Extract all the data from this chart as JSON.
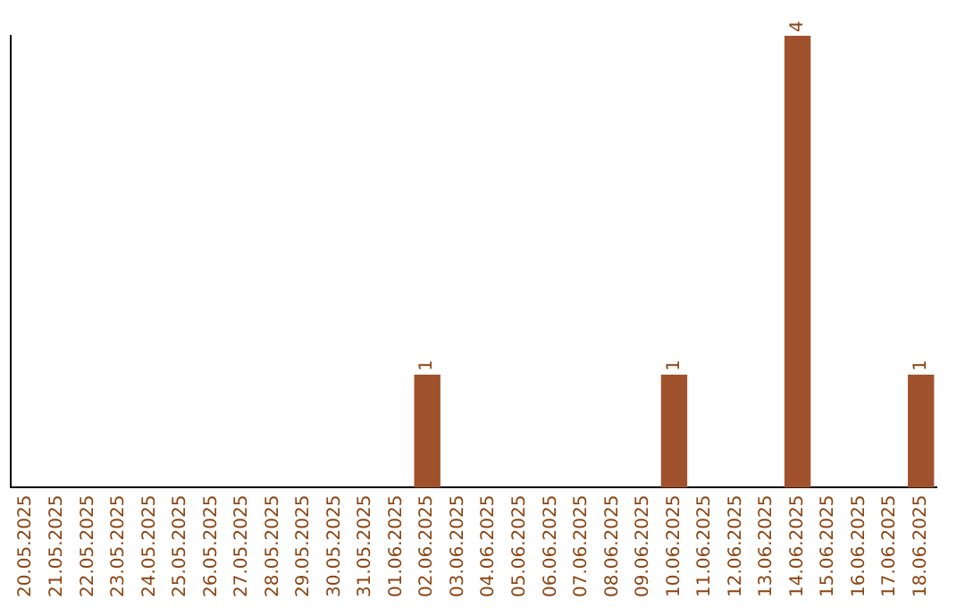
{
  "chart_data": {
    "type": "bar",
    "categories": [
      "20.05.2025",
      "21.05.2025",
      "22.05.2025",
      "23.05.2025",
      "24.05.2025",
      "25.05.2025",
      "26.05.2025",
      "27.05.2025",
      "28.05.2025",
      "29.05.2025",
      "30.05.2025",
      "31.05.2025",
      "01.06.2025",
      "02.06.2025",
      "03.06.2025",
      "04.06.2025",
      "05.06.2025",
      "06.06.2025",
      "07.06.2025",
      "08.06.2025",
      "09.06.2025",
      "10.06.2025",
      "11.06.2025",
      "12.06.2025",
      "13.06.2025",
      "14.06.2025",
      "15.06.2025",
      "16.06.2025",
      "17.06.2025",
      "18.06.2025"
    ],
    "values": [
      null,
      null,
      null,
      null,
      null,
      null,
      null,
      null,
      null,
      null,
      null,
      null,
      null,
      1,
      null,
      null,
      null,
      null,
      null,
      null,
      null,
      1,
      null,
      null,
      null,
      4,
      null,
      null,
      null,
      1
    ],
    "data_labels": true,
    "color": "#a0522d",
    "grid": false,
    "legend": false,
    "tick_labels": "x"
  }
}
